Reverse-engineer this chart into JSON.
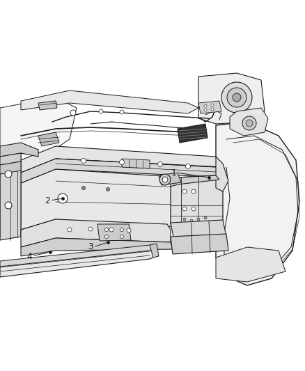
{
  "background_color": "#ffffff",
  "figsize": [
    4.38,
    5.33
  ],
  "dpi": 100,
  "line_color": "#1a1a1a",
  "light_fill": "#f0f0f0",
  "mid_fill": "#d8d8d8",
  "dark_fill": "#444444",
  "callouts": [
    {
      "num": "1",
      "nx": 0.57,
      "ny": 0.615
    },
    {
      "num": "2",
      "nx": 0.155,
      "ny": 0.49
    },
    {
      "num": "3",
      "nx": 0.295,
      "ny": 0.34
    },
    {
      "num": "4",
      "nx": 0.095,
      "ny": 0.325
    }
  ]
}
